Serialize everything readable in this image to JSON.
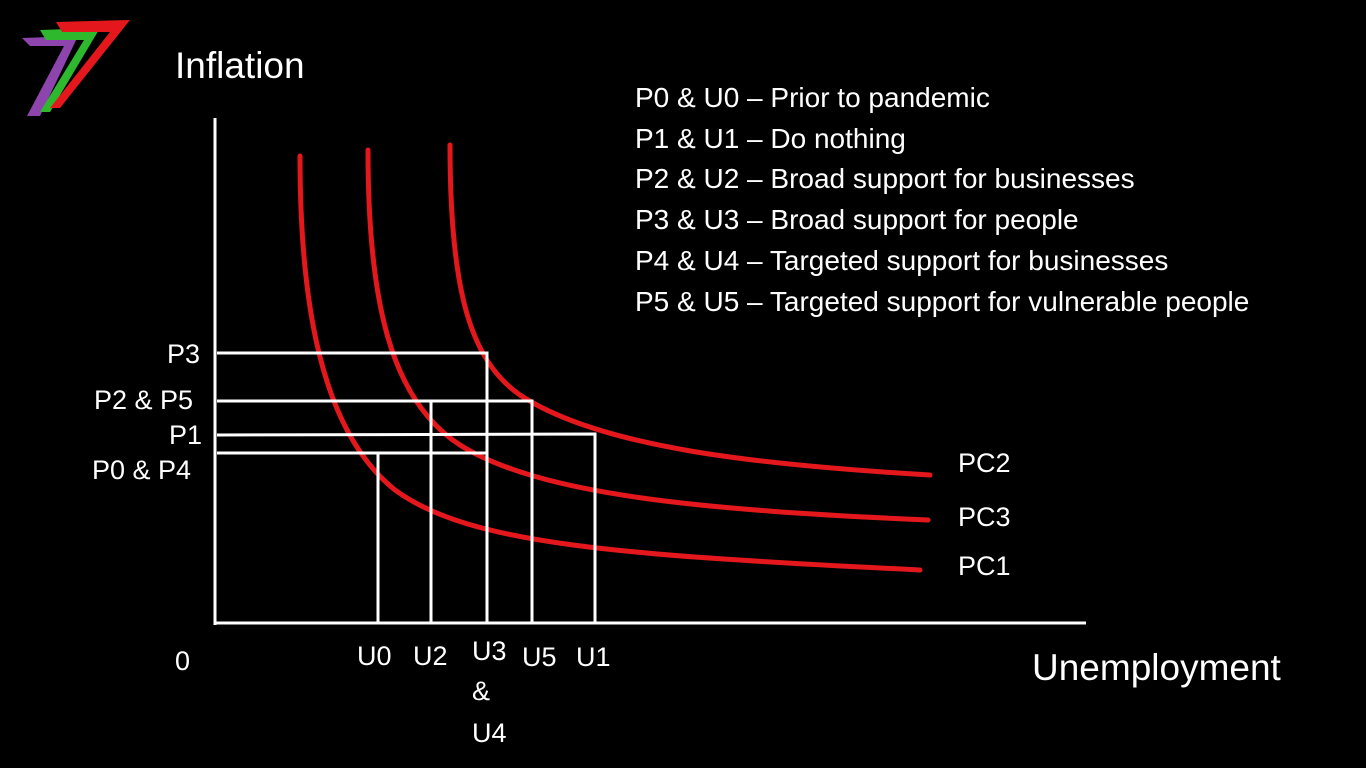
{
  "axes": {
    "y_title": "Inflation",
    "x_title": "Unemployment",
    "origin_label": "0"
  },
  "y_levels": {
    "p3": "P3",
    "p2_p5": "P2 & P5",
    "p1": "P1",
    "p0_p4": "P0 & P4"
  },
  "x_levels": {
    "u0": "U0",
    "u2": "U2",
    "u3_u4_line1": "U3",
    "u3_u4_line2": "&",
    "u3_u4_line3": "U4",
    "u5": "U5",
    "u1": "U1"
  },
  "curves": {
    "pc2": "PC2",
    "pc3": "PC3",
    "pc1": "PC1"
  },
  "legend": [
    "P0 & U0 – Prior to pandemic",
    "P1 & U1 – Do nothing",
    "P2 & U2 – Broad support for businesses",
    "P3 & U3 – Broad support for people",
    "P4 & U4 – Targeted support for businesses",
    "P5 & U5 – Targeted support for vulnerable people"
  ],
  "colors": {
    "background": "#000000",
    "curve": "#e4181c",
    "foreground": "#ffffff",
    "logo": [
      "#8e44ad",
      "#2eb82e",
      "#e4181c"
    ]
  },
  "logo_icon": "seven-stripe-logo"
}
